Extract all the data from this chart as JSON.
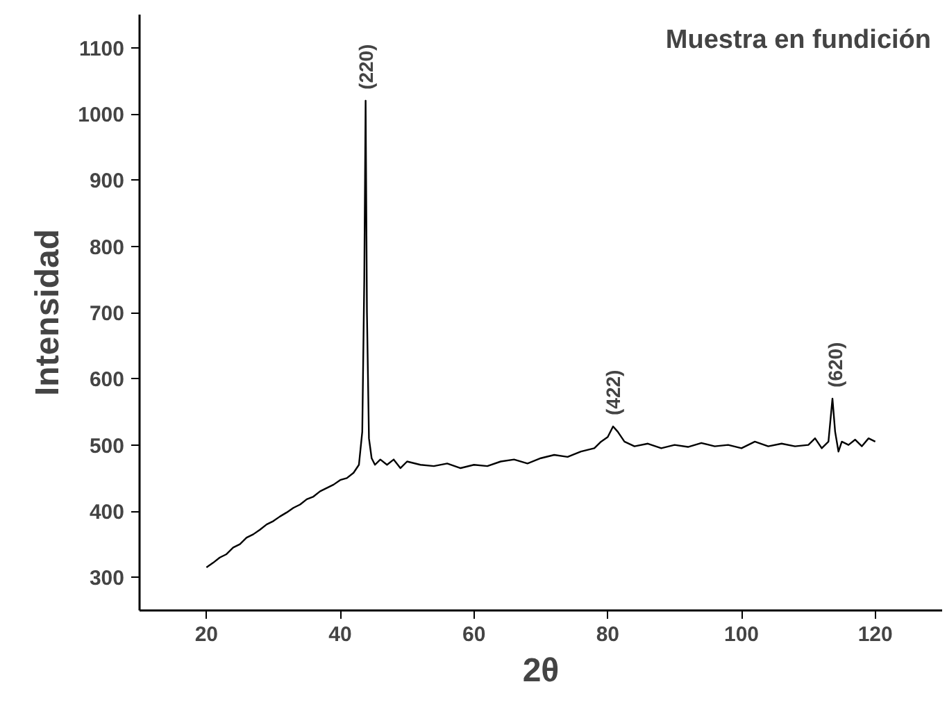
{
  "chart_data": {
    "type": "line",
    "title": "Muestra en fundición",
    "xlabel": "2θ",
    "ylabel": "Intensidad",
    "x": [
      20,
      21,
      22,
      23,
      24,
      25,
      26,
      27,
      28,
      29,
      30,
      31,
      32,
      33,
      34,
      35,
      36,
      37,
      38,
      39,
      40,
      41,
      42,
      42.8,
      43.3,
      43.6,
      43.8,
      44.0,
      44.3,
      44.7,
      45.2,
      46,
      47,
      48,
      49,
      50,
      52,
      54,
      56,
      58,
      60,
      62,
      64,
      66,
      68,
      70,
      72,
      74,
      76,
      78,
      79,
      80,
      80.8,
      81.5,
      82.5,
      84,
      86,
      88,
      90,
      92,
      94,
      96,
      98,
      100,
      102,
      104,
      106,
      108,
      110,
      111,
      112,
      113,
      113.6,
      114.0,
      114.5,
      115,
      116,
      117,
      118,
      119,
      120
    ],
    "series": [
      {
        "color": "#000000",
        "values": [
          315,
          322,
          330,
          335,
          345,
          350,
          360,
          365,
          372,
          380,
          385,
          392,
          398,
          405,
          410,
          418,
          422,
          430,
          435,
          440,
          447,
          450,
          458,
          470,
          520,
          750,
          1020,
          700,
          510,
          480,
          470,
          478,
          470,
          478,
          465,
          475,
          470,
          468,
          472,
          465,
          470,
          468,
          475,
          478,
          472,
          480,
          485,
          482,
          490,
          495,
          505,
          512,
          528,
          520,
          505,
          498,
          502,
          495,
          500,
          497,
          503,
          498,
          500,
          495,
          505,
          498,
          502,
          498,
          500,
          510,
          495,
          505,
          570,
          520,
          490,
          505,
          500,
          508,
          498,
          510,
          505
        ]
      }
    ],
    "xlim": [
      10,
      130
    ],
    "ylim": [
      250,
      1150
    ],
    "xticks": [
      20,
      40,
      60,
      80,
      100,
      120
    ],
    "yticks": [
      300,
      400,
      500,
      600,
      700,
      800,
      900,
      1000,
      1100
    ],
    "grid": false,
    "line_style": "solid",
    "marker": "none",
    "annotations": [
      {
        "text": "(220)",
        "x": 43.8,
        "y": 1020
      },
      {
        "text": "(422)",
        "x": 80.8,
        "y": 528
      },
      {
        "text": "(620)",
        "x": 114.0,
        "y": 570
      }
    ]
  }
}
